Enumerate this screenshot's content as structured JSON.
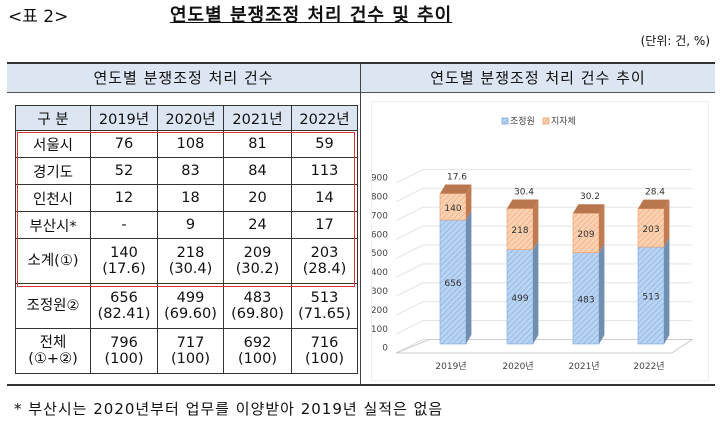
{
  "label": "<표 2>",
  "title": "연도별 분쟁조정 처리 건수 및 추이",
  "unit": "(단위: 건, %)",
  "left_header": "연도별 분쟁조정 처리 건수",
  "right_header": "연도별 분쟁조정 처리 건수 추이",
  "table": {
    "columns": [
      "구 분",
      "2019년",
      "2020년",
      "2021년",
      "2022년"
    ],
    "rows": [
      {
        "label": "서울시",
        "values": [
          "76",
          "108",
          "81",
          "59"
        ]
      },
      {
        "label": "경기도",
        "values": [
          "52",
          "83",
          "84",
          "113"
        ]
      },
      {
        "label": "인천시",
        "values": [
          "12",
          "18",
          "20",
          "14"
        ]
      },
      {
        "label": "부산시*",
        "values": [
          "-",
          "9",
          "24",
          "17"
        ]
      },
      {
        "label": "소계(①)",
        "values": [
          "140",
          "218",
          "209",
          "203"
        ],
        "sub": [
          "(17.6)",
          "(30.4)",
          "(30.2)",
          "(28.4)"
        ]
      },
      {
        "label": "조정원②",
        "values": [
          "656",
          "499",
          "483",
          "513"
        ],
        "sub": [
          "(82.41)",
          "(69.60)",
          "(69.80)",
          "(71.65)"
        ]
      },
      {
        "label": "전체",
        "label2": "(①+②)",
        "values": [
          "796",
          "717",
          "692",
          "716"
        ],
        "sub": [
          "(100)",
          "(100)",
          "(100)",
          "(100)"
        ]
      }
    ]
  },
  "footnote": "* 부산시는 2020년부터 업무를 이양받아 2019년 실적은 없음",
  "chart_data": {
    "type": "bar",
    "stacked": true,
    "categories": [
      "2019년",
      "2020년",
      "2021년",
      "2022년"
    ],
    "series": [
      {
        "name": "조정원",
        "values": [
          656,
          499,
          483,
          513
        ],
        "color": "#a9c8ee"
      },
      {
        "name": "지자체",
        "values": [
          140,
          218,
          209,
          203
        ],
        "color": "#f7c8a4"
      }
    ],
    "top_labels": [
      "17.6",
      "30.4",
      "30.2",
      "28.4"
    ],
    "yticks": [
      "0",
      "100",
      "200",
      "300",
      "400",
      "500",
      "600",
      "700",
      "800",
      "900"
    ],
    "ylim": [
      0,
      900
    ],
    "legend": "top"
  }
}
